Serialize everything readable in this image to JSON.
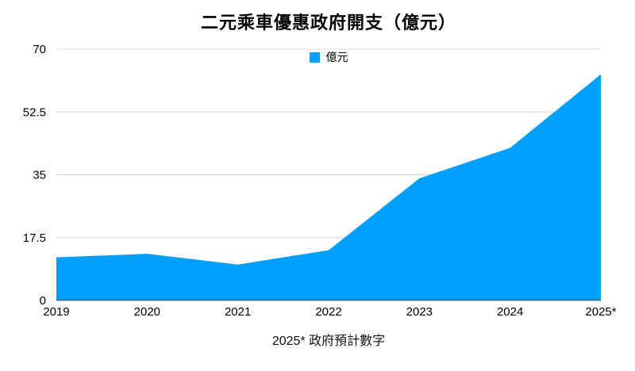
{
  "chart_data": {
    "type": "area",
    "title": "二元乘車優惠政府開支（億元）",
    "legend": {
      "label": "億元",
      "position": "top-center"
    },
    "categories": [
      "2019",
      "2020",
      "2021",
      "2022",
      "2023",
      "2024",
      "2025*"
    ],
    "series": [
      {
        "name": "億元",
        "values": [
          12,
          13,
          10,
          14,
          34,
          42.5,
          63
        ]
      }
    ],
    "xlabel": "",
    "ylabel": "",
    "ylim": [
      0,
      70
    ],
    "yticks": [
      0,
      17.5,
      35,
      52.5,
      70
    ],
    "ytick_labels": [
      "0",
      "17.5",
      "35",
      "52.5",
      "70"
    ],
    "grid": true,
    "footnote": "2025* 政府預計數字",
    "colors": {
      "area_fill": "#029ffc",
      "gridline": "#d8d8d8",
      "baseline": "#3e7396",
      "text": "#000000"
    }
  }
}
